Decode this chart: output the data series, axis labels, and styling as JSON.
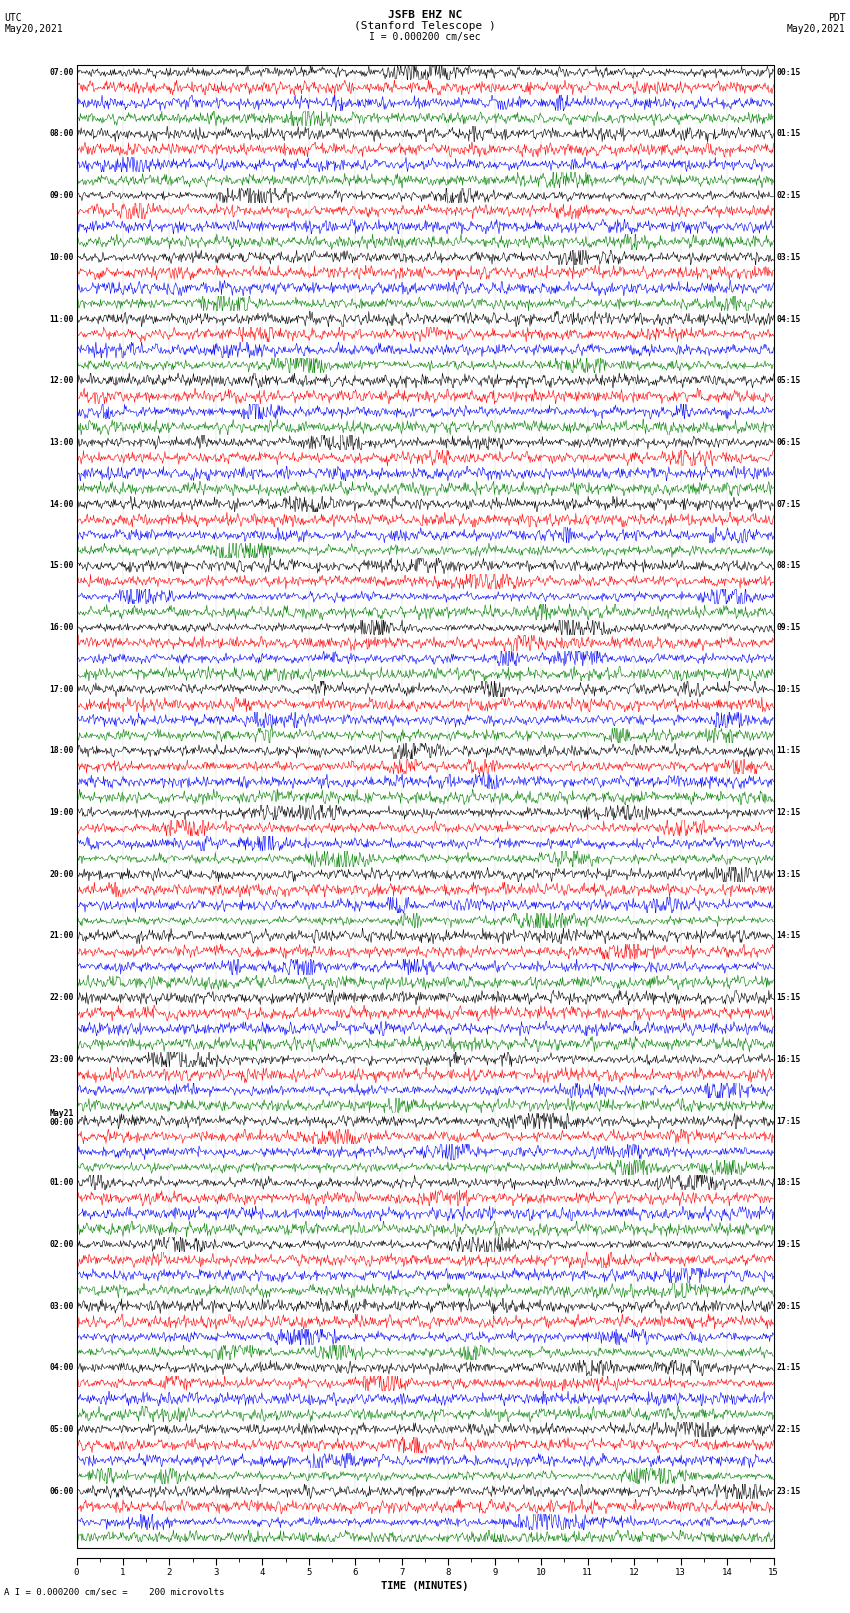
{
  "title_line1": "JSFB EHZ NC",
  "title_line2": "(Stanford Telescope )",
  "scale_label": "I = 0.000200 cm/sec",
  "bottom_label": "A I = 0.000200 cm/sec =    200 microvolts",
  "utc_label_line1": "UTC",
  "utc_label_line2": "May20,2021",
  "pdt_label_line1": "PDT",
  "pdt_label_line2": "May20,2021",
  "xlabel": "TIME (MINUTES)",
  "left_times": [
    "07:00",
    "08:00",
    "09:00",
    "10:00",
    "11:00",
    "12:00",
    "13:00",
    "14:00",
    "15:00",
    "16:00",
    "17:00",
    "18:00",
    "19:00",
    "20:00",
    "21:00",
    "22:00",
    "23:00",
    "May21\n00:00",
    "01:00",
    "02:00",
    "03:00",
    "04:00",
    "05:00",
    "06:00"
  ],
  "right_times": [
    "00:15",
    "01:15",
    "02:15",
    "03:15",
    "04:15",
    "05:15",
    "06:15",
    "07:15",
    "08:15",
    "09:15",
    "10:15",
    "11:15",
    "12:15",
    "13:15",
    "14:15",
    "15:15",
    "16:15",
    "17:15",
    "18:15",
    "19:15",
    "20:15",
    "21:15",
    "22:15",
    "23:15"
  ],
  "trace_colors": [
    "black",
    "red",
    "blue",
    "green"
  ],
  "bg_color": "white",
  "n_hours": 24,
  "traces_per_hour": 4,
  "minutes": 15,
  "seed": 42
}
